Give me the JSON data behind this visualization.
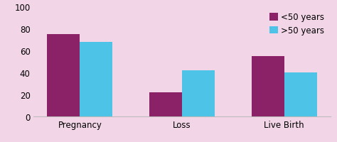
{
  "categories": [
    "Pregnancy",
    "Loss",
    "Live Birth"
  ],
  "series": [
    {
      "label": "<50 years",
      "values": [
        75,
        22,
        55
      ],
      "color": "#8B2167"
    },
    {
      "label": ">50 years",
      "values": [
        68,
        42,
        40
      ],
      "color": "#4DC3E8"
    }
  ],
  "ylim": [
    0,
    100
  ],
  "yticks": [
    0,
    20,
    40,
    60,
    80,
    100
  ],
  "background_color": "#F2D6E8",
  "axes_background": "#F2D6E8",
  "bar_width": 0.32,
  "legend_fontsize": 8.5,
  "tick_fontsize": 8.5
}
